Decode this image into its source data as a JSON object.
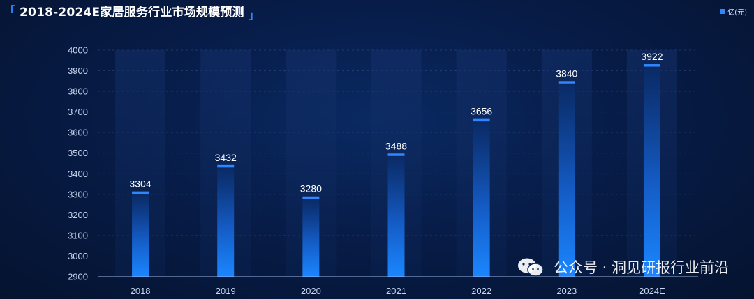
{
  "header": {
    "title": "2018-2024E家居服务行业市场规模预测",
    "legend_label": "亿(元)"
  },
  "colors": {
    "accent": "#2f86ff",
    "bar_top": "#0a2a66",
    "bar_bottom": "#1b7dff",
    "column_bg": "#0f2a5e",
    "axis_text": "#c8d6f0",
    "value_text": "#ffffff"
  },
  "chart_data": {
    "type": "bar",
    "title": "2018-2024E家居服务行业市场规模预测",
    "xlabel": "",
    "ylabel": "",
    "categories": [
      "2018",
      "2019",
      "2020",
      "2021",
      "2022",
      "2023",
      "2024E"
    ],
    "series": [
      {
        "name": "亿(元)",
        "values": [
          3304,
          3432,
          3280,
          3488,
          3656,
          3840,
          3922
        ]
      }
    ],
    "ylim": [
      2900,
      4000
    ],
    "yticks": [
      2900,
      3000,
      3100,
      3200,
      3300,
      3400,
      3500,
      3600,
      3700,
      3800,
      3900,
      4000
    ],
    "grid": true,
    "legend_position": "top-right",
    "show_data_labels": true
  },
  "watermark": {
    "icon": "wechat-icon",
    "text": "公众号 · 洞见研报行业前沿"
  }
}
